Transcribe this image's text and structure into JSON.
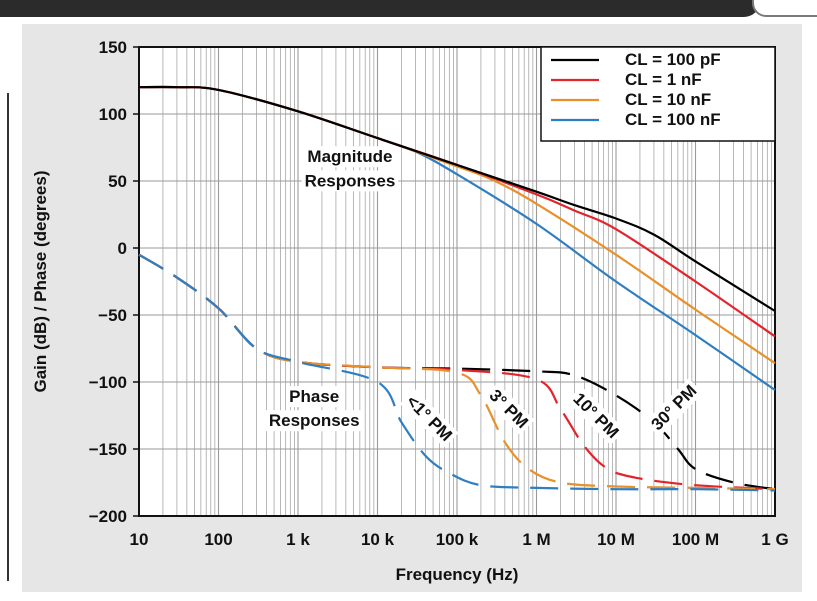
{
  "chart_data": {
    "type": "line",
    "xscale": "log",
    "xlim": [
      10,
      1000000000
    ],
    "ylim": [
      -200,
      150
    ],
    "grid": true,
    "xlabel": "Frequency (Hz)",
    "ylabel": "Gain (dB) / Phase (degrees)",
    "x_tick_labels": [
      "10",
      "100",
      "1 k",
      "10 k",
      "100 k",
      "1 M",
      "10 M",
      "100 M",
      "1 G"
    ],
    "x_ticks": [
      10,
      100,
      1000,
      10000,
      100000,
      1000000,
      10000000,
      100000000,
      1000000000
    ],
    "y_tick_labels": [
      "150",
      "100",
      "50",
      "0",
      "−50",
      "−100",
      "−150",
      "−200"
    ],
    "y_ticks": [
      150,
      100,
      50,
      0,
      -50,
      -100,
      -150,
      -200
    ],
    "legend_position": "top-right",
    "series": [
      {
        "name": "CL = 100 pF",
        "color": "#000000",
        "magnitude": {
          "x": [
            10,
            30,
            100,
            1000,
            10000,
            100000,
            1000000,
            3000000,
            10000000,
            30000000,
            100000000,
            1000000000
          ],
          "y": [
            120,
            120,
            118,
            102,
            82,
            62,
            42,
            32,
            22,
            10,
            -10,
            -47
          ]
        },
        "phase": {
          "x": [
            10,
            30,
            100,
            300,
            1000,
            10000,
            100000,
            1000000,
            3000000,
            10000000,
            30000000,
            60000000,
            100000000,
            300000000,
            1000000000
          ],
          "y": [
            -5,
            -22,
            -45,
            -75,
            -85,
            -89,
            -90,
            -92,
            -95,
            -110,
            -130,
            -150,
            -165,
            -175,
            -180
          ]
        }
      },
      {
        "name": "CL = 1 nF",
        "color": "#e2242b",
        "magnitude": {
          "x": [
            10,
            30,
            100,
            1000,
            10000,
            100000,
            1000000,
            3000000,
            10000000,
            100000000,
            1000000000
          ],
          "y": [
            120,
            120,
            118,
            102,
            82,
            62,
            40,
            28,
            14,
            -25,
            -66
          ]
        },
        "phase": {
          "x": [
            10,
            30,
            100,
            300,
            1000,
            10000,
            100000,
            1000000,
            2000000,
            4000000,
            8000000,
            20000000,
            100000000,
            1000000000
          ],
          "y": [
            -5,
            -22,
            -45,
            -75,
            -85,
            -89,
            -91,
            -98,
            -120,
            -148,
            -165,
            -172,
            -177,
            -180
          ]
        }
      },
      {
        "name": "CL = 10 nF",
        "color": "#e8902a",
        "magnitude": {
          "x": [
            10,
            30,
            100,
            1000,
            10000,
            100000,
            300000,
            1000000,
            10000000,
            100000000,
            1000000000
          ],
          "y": [
            120,
            120,
            118,
            102,
            82,
            61,
            50,
            33,
            -5,
            -46,
            -86
          ]
        },
        "phase": {
          "x": [
            10,
            30,
            100,
            300,
            1000,
            10000,
            100000,
            200000,
            400000,
            800000,
            2000000,
            10000000,
            100000000,
            1000000000
          ],
          "y": [
            -5,
            -22,
            -45,
            -75,
            -85,
            -89,
            -93,
            -110,
            -145,
            -165,
            -175,
            -178,
            -179,
            -180
          ]
        }
      },
      {
        "name": "CL = 100 nF",
        "color": "#2f7ec2",
        "magnitude": {
          "x": [
            10,
            30,
            100,
            1000,
            10000,
            30000,
            100000,
            1000000,
            10000000,
            100000000,
            1000000000
          ],
          "y": [
            120,
            120,
            118,
            102,
            82,
            72,
            55,
            18,
            -25,
            -65,
            -106
          ]
        },
        "phase": {
          "x": [
            10,
            30,
            100,
            300,
            1000,
            10000,
            20000,
            40000,
            80000,
            200000,
            1000000,
            10000000,
            100000000,
            1000000000
          ],
          "y": [
            -5,
            -22,
            -45,
            -75,
            -85,
            -100,
            -130,
            -155,
            -168,
            -177,
            -179,
            -180,
            -180,
            -181
          ]
        }
      }
    ],
    "annotations": [
      {
        "text": "Magnitude",
        "x": 4500,
        "y": 64
      },
      {
        "text": "Responses",
        "x": 4500,
        "y": 46
      },
      {
        "text": "Phase",
        "x": 1600,
        "y": -115
      },
      {
        "text": "Responses",
        "x": 1600,
        "y": -133
      },
      {
        "text": "<1° PM",
        "x": 40000,
        "y": -130,
        "rotate": 45
      },
      {
        "text": "3° PM",
        "x": 400000,
        "y": -123,
        "rotate": 45
      },
      {
        "text": "10° PM",
        "x": 5000000,
        "y": -128,
        "rotate": 45
      },
      {
        "text": "30° PM",
        "x": 60000000,
        "y": -122,
        "rotate": -45
      }
    ]
  }
}
